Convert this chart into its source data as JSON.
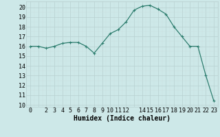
{
  "x": [
    0,
    1,
    2,
    3,
    4,
    5,
    6,
    7,
    8,
    9,
    10,
    11,
    12,
    13,
    14,
    15,
    16,
    17,
    18,
    19,
    20,
    21,
    22,
    23
  ],
  "y": [
    16.0,
    16.0,
    15.8,
    16.0,
    16.3,
    16.4,
    16.4,
    16.0,
    15.3,
    16.3,
    17.3,
    17.7,
    18.5,
    19.7,
    20.1,
    20.2,
    19.8,
    19.3,
    18.0,
    17.0,
    16.0,
    16.0,
    13.0,
    10.4
  ],
  "line_color": "#2d7d6e",
  "marker": "+",
  "marker_size": 3,
  "marker_lw": 0.8,
  "bg_color": "#cde8e8",
  "grid_major_color": "#b8d0d0",
  "grid_minor_color": "#cce0e0",
  "xlabel": "Humidex (Indice chaleur)",
  "ylabel_ticks": [
    10,
    11,
    12,
    13,
    14,
    15,
    16,
    17,
    18,
    19,
    20
  ],
  "xlim": [
    -0.5,
    23.5
  ],
  "ylim": [
    9.8,
    20.6
  ],
  "xtick_show": [
    0,
    2,
    3,
    4,
    5,
    6,
    7,
    8,
    9,
    10,
    11,
    12,
    14,
    15,
    16,
    17,
    18,
    19,
    20,
    21,
    22,
    23
  ],
  "xlabel_fontsize": 7,
  "tick_fontsize": 6,
  "line_width": 0.9
}
